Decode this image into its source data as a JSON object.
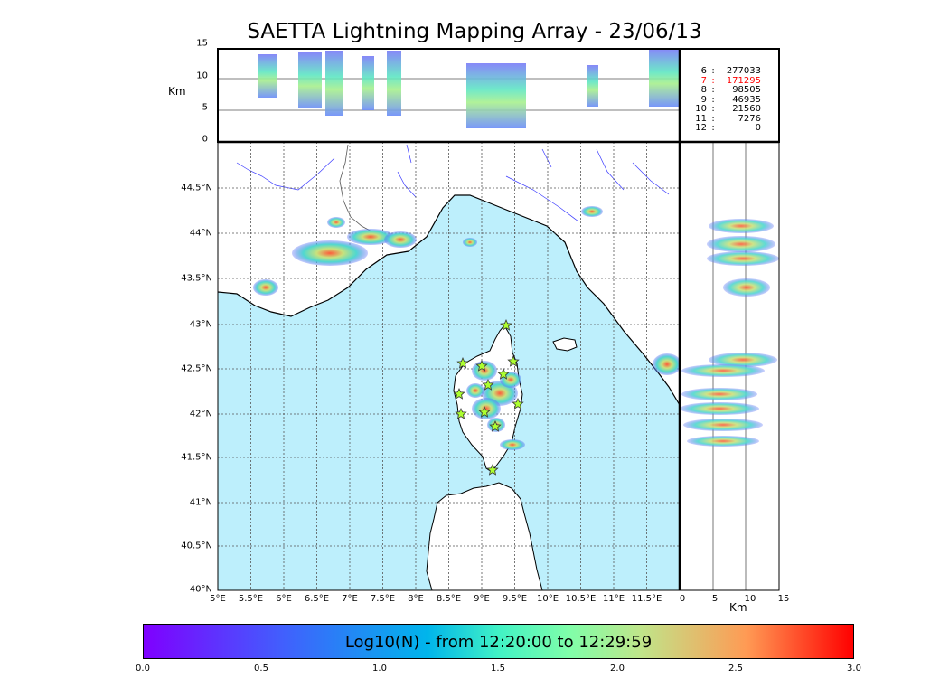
{
  "title": "SAETTA Lightning Mapping Array - 23/06/13",
  "top_panel": {
    "ylabel": "Km",
    "yticks": [
      "15",
      "10",
      "5",
      "0"
    ]
  },
  "map": {
    "lat_ticks": [
      "44.5°N",
      "44°N",
      "43.5°N",
      "43°N",
      "42.5°N",
      "42°N",
      "41.5°N",
      "41°N",
      "40.5°N",
      "40°N"
    ],
    "lon_ticks": [
      "5°E",
      "5.5°E",
      "6°E",
      "6.5°E",
      "7°E",
      "7.5°E",
      "8°E",
      "8.5°E",
      "9°E",
      "9.5°E",
      "10°E",
      "10.5°E",
      "11°E",
      "11.5°E"
    ],
    "sea_color": "#bdeffc",
    "coast_color": "#000000",
    "river_color": "#3a3aff",
    "station_icon": "star-icon",
    "station_color": "#adff2f"
  },
  "side_panel": {
    "xlabel": "Km",
    "xticks": [
      "0",
      "5",
      "10",
      "15"
    ]
  },
  "stats": [
    {
      "level": "6",
      "sep": ":",
      "count": "277033"
    },
    {
      "level": "7",
      "sep": ":",
      "count": "171295",
      "highlight": true
    },
    {
      "level": "8",
      "sep": ":",
      "count": "98505"
    },
    {
      "level": "9",
      "sep": ":",
      "count": "46935"
    },
    {
      "level": "10",
      "sep": ":",
      "count": "21560"
    },
    {
      "level": "11",
      "sep": ":",
      "count": "7276"
    },
    {
      "level": "12",
      "sep": ":",
      "count": "0"
    }
  ],
  "colorbar": {
    "label": "Log10(N) - from 12:20:00 to 12:29:59",
    "ticks": [
      "0.0",
      "0.5",
      "1.0",
      "1.5",
      "2.0",
      "2.5",
      "3.0"
    ],
    "colormap": "rainbow",
    "min_color": "#7f00ff",
    "max_color": "#ff0000"
  }
}
